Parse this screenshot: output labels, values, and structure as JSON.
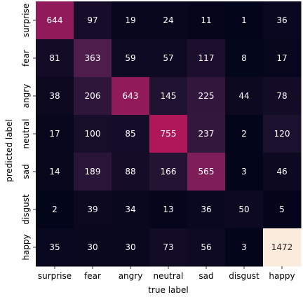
{
  "chart_data": {
    "type": "heatmap",
    "xlabel": "true label",
    "ylabel": "predicted label",
    "x_categories": [
      "surprise",
      "fear",
      "angry",
      "neutral",
      "sad",
      "disgust",
      "happy"
    ],
    "y_categories": [
      "surprise",
      "fear",
      "angry",
      "neutral",
      "sad",
      "disgust",
      "happy"
    ],
    "values": [
      [
        644,
        97,
        19,
        24,
        11,
        1,
        36
      ],
      [
        81,
        363,
        59,
        57,
        117,
        8,
        17
      ],
      [
        38,
        206,
        643,
        145,
        225,
        44,
        78
      ],
      [
        17,
        100,
        85,
        755,
        237,
        2,
        120
      ],
      [
        14,
        189,
        88,
        166,
        565,
        3,
        46
      ],
      [
        2,
        39,
        34,
        13,
        36,
        50,
        5
      ],
      [
        35,
        30,
        30,
        73,
        56,
        3,
        1472
      ]
    ],
    "colormap": "rocket",
    "color_range": [
      1,
      1472
    ],
    "colorbar": false,
    "grid": false
  }
}
